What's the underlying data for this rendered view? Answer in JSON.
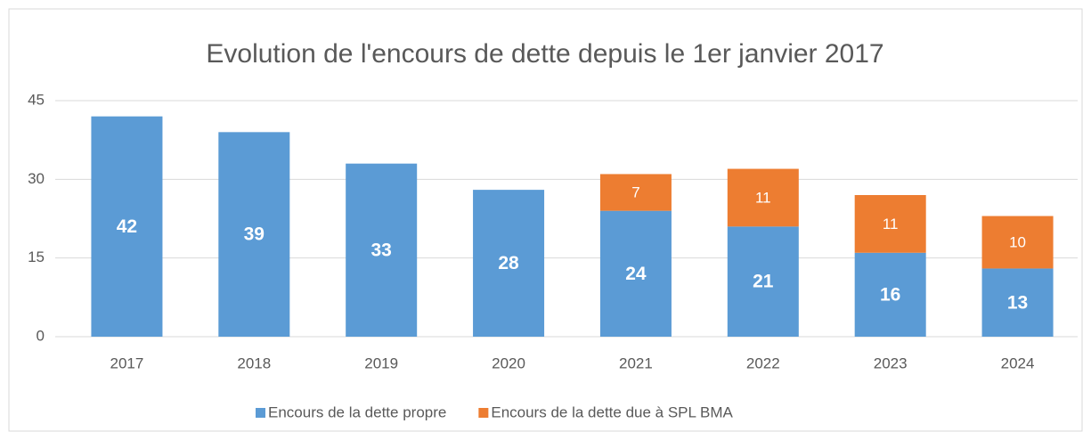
{
  "chart_data": {
    "type": "stacked_bar",
    "title": "Evolution de l'encours de dette depuis le 1er janvier 2017",
    "categories": [
      "2017",
      "2018",
      "2019",
      "2020",
      "2021",
      "2022",
      "2023",
      "2024"
    ],
    "series": [
      {
        "name": "Encours de la dette propre",
        "color": "#5b9bd5",
        "values": [
          42,
          39,
          33,
          28,
          24,
          21,
          16,
          13
        ]
      },
      {
        "name": "Encours de la dette due à SPL BMA",
        "color": "#ed7d31",
        "values": [
          null,
          null,
          null,
          null,
          7,
          11,
          11,
          10
        ]
      }
    ],
    "ylim": [
      0,
      45
    ],
    "yticks": [
      0,
      15,
      30,
      45
    ],
    "grid": true,
    "legend": "bottom"
  }
}
